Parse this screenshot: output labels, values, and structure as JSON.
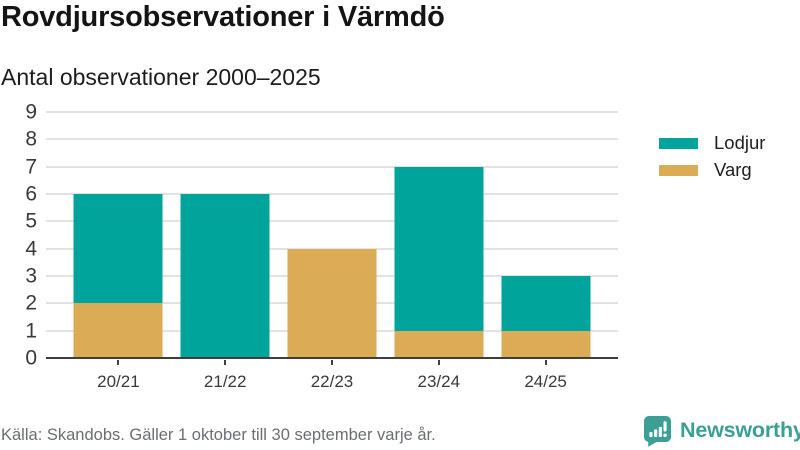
{
  "header": {
    "title": "Rovdjursobservationer i Värmdö",
    "subtitle": "Antal observationer 2000–2025"
  },
  "chart_data": {
    "type": "bar",
    "stacked": true,
    "title": "Rovdjursobservationer i Värmdö",
    "subtitle": "Antal observationer 2000–2025",
    "categories": [
      "20/21",
      "21/22",
      "22/23",
      "23/24",
      "24/25"
    ],
    "series": [
      {
        "name": "Lodjur",
        "color": "#00a49a",
        "values": [
          4,
          6,
          0,
          6,
          2
        ]
      },
      {
        "name": "Varg",
        "color": "#dbab55",
        "values": [
          2,
          0,
          4,
          1,
          1
        ]
      }
    ],
    "stack_bottom_to_top": [
      "Varg",
      "Lodjur"
    ],
    "totals": [
      6,
      6,
      4,
      7,
      3
    ],
    "xlabel": "",
    "ylabel": "",
    "ylim": [
      0,
      9
    ],
    "yticks": [
      0,
      1,
      2,
      3,
      4,
      5,
      6,
      7,
      8,
      9
    ],
    "grid": true,
    "legend_position": "right"
  },
  "footer": {
    "source": "Källa: Skandobs. Gäller 1 oktober till 30 september varje år.",
    "brand": "Newsworthy",
    "brand_color": "#3c9f96"
  }
}
